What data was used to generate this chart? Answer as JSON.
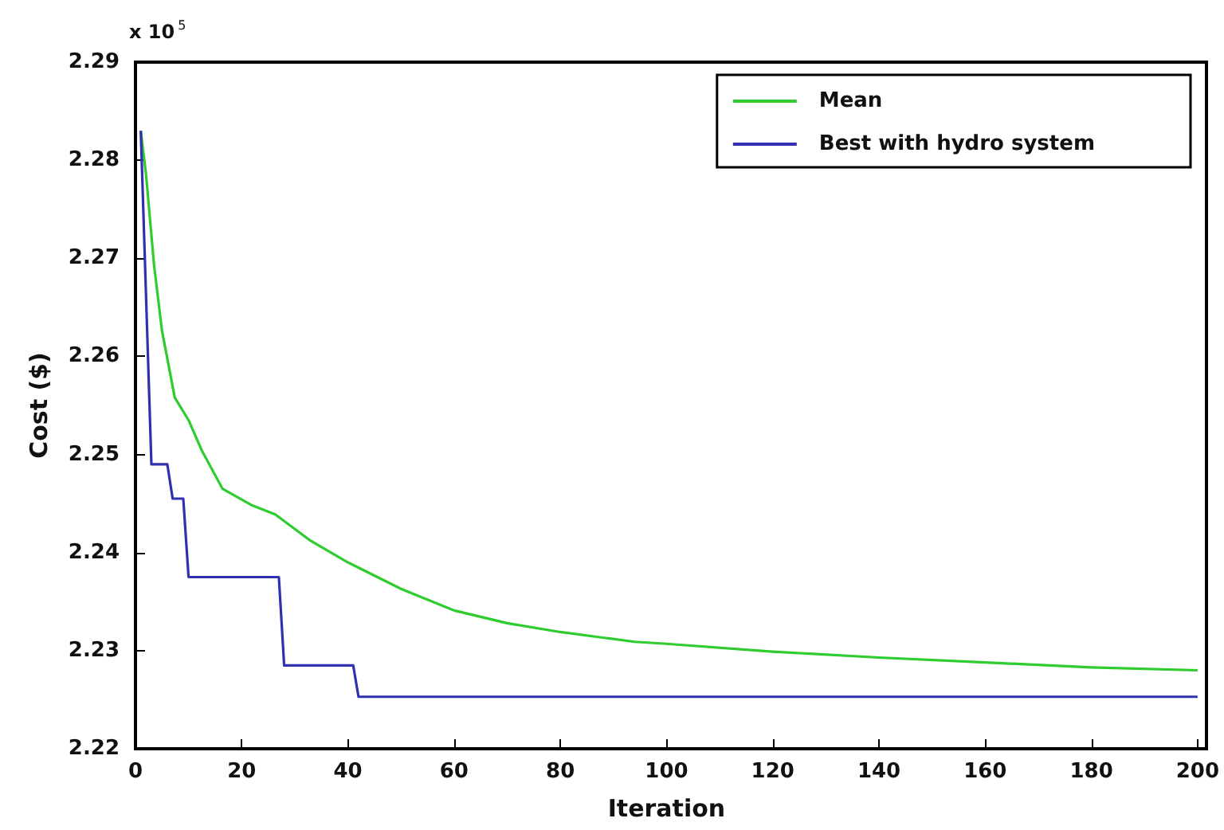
{
  "chart_data": {
    "type": "line",
    "xlabel": "Iteration",
    "ylabel": "Cost ($)",
    "annotations": [
      "x 10$^{5}$"
    ],
    "xlim": [
      0,
      200
    ],
    "xticks": [
      0,
      20,
      40,
      60,
      80,
      100,
      120,
      140,
      160,
      180,
      200
    ],
    "ylim": [
      2.22,
      2.29
    ],
    "yticks": [
      2.22,
      2.23,
      2.24,
      2.25,
      2.26,
      2.27,
      2.28,
      2.29
    ],
    "grid": false,
    "legend": "top right",
    "marker": "none",
    "line_style": "solid",
    "series": [
      {
        "name": "Mean",
        "color": "#2ecc2e",
        "x": [
          1,
          2,
          3.5,
          5,
          7.4,
          10,
          12.5,
          16.4,
          22,
          26.3,
          33,
          40,
          50,
          60,
          70,
          80,
          94,
          100,
          120,
          140,
          160,
          180,
          200
        ],
        "values": [
          2.283,
          2.2785,
          2.2693,
          2.2626,
          2.2558,
          2.2535,
          2.2504,
          2.2465,
          2.2448,
          2.2439,
          2.2412,
          2.239,
          2.2363,
          2.2341,
          2.2328,
          2.2319,
          2.2309,
          2.2307,
          2.2299,
          2.2293,
          2.2288,
          2.2283,
          2.228
        ]
      },
      {
        "name": "Best with hydro system",
        "color": "#3030b0",
        "x": [
          1,
          3,
          6,
          7,
          9,
          10,
          27,
          28,
          41,
          42,
          200
        ],
        "values": [
          2.283,
          2.249,
          2.249,
          2.2455,
          2.2455,
          2.2375,
          2.2375,
          2.2285,
          2.2285,
          2.2253,
          2.2253
        ]
      }
    ]
  }
}
